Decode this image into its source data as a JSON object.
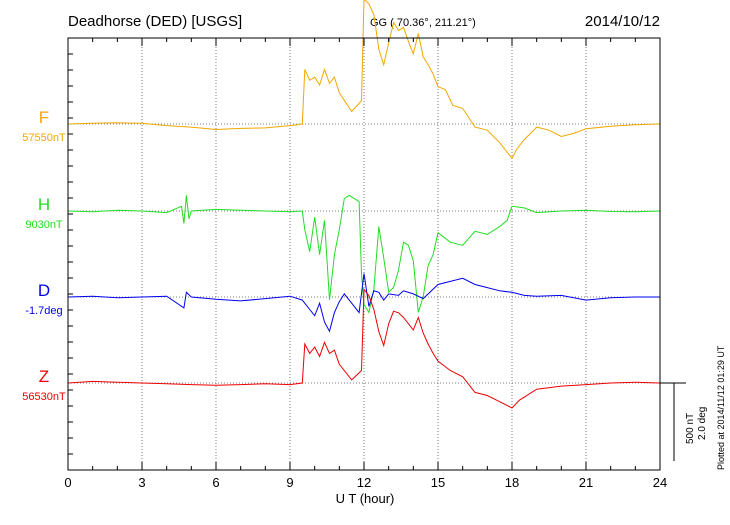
{
  "header": {
    "station": "Deadhorse (DED)  [USGS]",
    "coords": "GG ( 70.36°, 211.21°)",
    "date": "2014/10/12"
  },
  "plotted_note": "Plotted at 2014/11/12 01:29 UT",
  "scale_bar": {
    "line1": "500 nT",
    "line2": "2.0 deg"
  },
  "chart_data": {
    "type": "line",
    "title": "",
    "xlabel": "U T (hour)",
    "xlim": [
      0,
      24
    ],
    "xticks": [
      {
        "value": 0,
        "label": "0"
      },
      {
        "value": 3,
        "label": "3"
      },
      {
        "value": 6,
        "label": "6"
      },
      {
        "value": 9,
        "label": "9"
      },
      {
        "value": 12,
        "label": "12"
      },
      {
        "value": 15,
        "label": "15"
      },
      {
        "value": 18,
        "label": "18"
      },
      {
        "value": 21,
        "label": "21"
      },
      {
        "value": 24,
        "label": "24"
      }
    ],
    "grid": true,
    "scale_note": "scale bar = 500 nT (F,H,Z) / 2.0 deg (D); series values are deviations from baseline in nT (D in deg)",
    "series": [
      {
        "name": "F",
        "baseline_label": "57550nT",
        "color": "#f0a800",
        "points": [
          [
            0,
            0
          ],
          [
            1,
            5
          ],
          [
            2,
            8
          ],
          [
            3,
            5
          ],
          [
            4,
            -10
          ],
          [
            5,
            -20
          ],
          [
            6,
            -35
          ],
          [
            7,
            -28
          ],
          [
            8,
            -25
          ],
          [
            9,
            -10
          ],
          [
            9.5,
            0
          ],
          [
            9.6,
            350
          ],
          [
            9.8,
            280
          ],
          [
            10,
            300
          ],
          [
            10.2,
            250
          ],
          [
            10.4,
            350
          ],
          [
            10.6,
            260
          ],
          [
            10.8,
            300
          ],
          [
            11,
            200
          ],
          [
            11.5,
            80
          ],
          [
            11.9,
            150
          ],
          [
            12,
            800
          ],
          [
            12.2,
            770
          ],
          [
            12.4,
            700
          ],
          [
            12.6,
            480
          ],
          [
            12.8,
            380
          ],
          [
            13,
            520
          ],
          [
            13.2,
            650
          ],
          [
            13.4,
            600
          ],
          [
            13.6,
            620
          ],
          [
            13.8,
            530
          ],
          [
            14,
            450
          ],
          [
            14.2,
            580
          ],
          [
            14.4,
            430
          ],
          [
            14.6,
            380
          ],
          [
            14.8,
            320
          ],
          [
            15,
            240
          ],
          [
            15.3,
            220
          ],
          [
            15.6,
            120
          ],
          [
            16,
            100
          ],
          [
            16.5,
            -20
          ],
          [
            17,
            -40
          ],
          [
            17.5,
            -120
          ],
          [
            18,
            -220
          ],
          [
            18.2,
            -160
          ],
          [
            18.5,
            -100
          ],
          [
            19,
            -20
          ],
          [
            19.5,
            -40
          ],
          [
            20,
            -80
          ],
          [
            20.5,
            -60
          ],
          [
            21,
            -30
          ],
          [
            22,
            -15
          ],
          [
            23,
            -5
          ],
          [
            24,
            0
          ]
        ]
      },
      {
        "name": "H",
        "baseline_label": "9030nT",
        "color": "#22dd22",
        "points": [
          [
            0,
            0
          ],
          [
            1,
            -5
          ],
          [
            2,
            5
          ],
          [
            3,
            0
          ],
          [
            4,
            -10
          ],
          [
            4.6,
            30
          ],
          [
            4.7,
            -80
          ],
          [
            4.8,
            100
          ],
          [
            4.9,
            -50
          ],
          [
            5,
            0
          ],
          [
            6,
            10
          ],
          [
            7,
            5
          ],
          [
            8,
            0
          ],
          [
            9,
            -5
          ],
          [
            9.5,
            0
          ],
          [
            9.6,
            -120
          ],
          [
            9.8,
            -260
          ],
          [
            10,
            -40
          ],
          [
            10.2,
            -280
          ],
          [
            10.4,
            -60
          ],
          [
            10.6,
            -570
          ],
          [
            10.8,
            -280
          ],
          [
            11,
            -120
          ],
          [
            11.2,
            80
          ],
          [
            11.4,
            100
          ],
          [
            11.8,
            60
          ],
          [
            11.9,
            -400
          ],
          [
            12,
            -600
          ],
          [
            12.2,
            -650
          ],
          [
            12.4,
            -500
          ],
          [
            12.6,
            -100
          ],
          [
            12.8,
            -300
          ],
          [
            13,
            -520
          ],
          [
            13.2,
            -490
          ],
          [
            13.4,
            -380
          ],
          [
            13.6,
            -200
          ],
          [
            13.8,
            -220
          ],
          [
            14,
            -320
          ],
          [
            14.2,
            -650
          ],
          [
            14.4,
            -550
          ],
          [
            14.6,
            -350
          ],
          [
            14.8,
            -280
          ],
          [
            15,
            -140
          ],
          [
            15.5,
            -200
          ],
          [
            16,
            -220
          ],
          [
            16.5,
            -130
          ],
          [
            17,
            -150
          ],
          [
            17.5,
            -100
          ],
          [
            17.8,
            -60
          ],
          [
            18,
            30
          ],
          [
            18.5,
            20
          ],
          [
            19,
            -10
          ],
          [
            20,
            0
          ],
          [
            21,
            5
          ],
          [
            22,
            -3
          ],
          [
            23,
            -5
          ],
          [
            24,
            0
          ]
        ]
      },
      {
        "name": "D",
        "baseline_label": "-1.7deg",
        "color": "#0000ee",
        "points": [
          [
            0,
            0
          ],
          [
            1,
            5
          ],
          [
            2,
            -5
          ],
          [
            3,
            0
          ],
          [
            4,
            5
          ],
          [
            4.7,
            -70
          ],
          [
            4.8,
            30
          ],
          [
            5,
            0
          ],
          [
            6,
            -15
          ],
          [
            7,
            -25
          ],
          [
            8,
            -10
          ],
          [
            9,
            5
          ],
          [
            9.5,
            -20
          ],
          [
            9.8,
            -80
          ],
          [
            10,
            -120
          ],
          [
            10.2,
            -40
          ],
          [
            10.4,
            -160
          ],
          [
            10.6,
            -220
          ],
          [
            10.8,
            -100
          ],
          [
            11,
            -30
          ],
          [
            11.2,
            20
          ],
          [
            11.5,
            -40
          ],
          [
            11.8,
            -100
          ],
          [
            12,
            150
          ],
          [
            12.2,
            -60
          ],
          [
            12.4,
            40
          ],
          [
            12.6,
            30
          ],
          [
            12.8,
            -20
          ],
          [
            13,
            20
          ],
          [
            13.4,
            10
          ],
          [
            13.6,
            40
          ],
          [
            14,
            20
          ],
          [
            14.4,
            -10
          ],
          [
            15,
            80
          ],
          [
            15.5,
            100
          ],
          [
            16,
            120
          ],
          [
            16.5,
            80
          ],
          [
            17,
            60
          ],
          [
            17.5,
            40
          ],
          [
            18,
            30
          ],
          [
            18.5,
            10
          ],
          [
            19,
            5
          ],
          [
            20,
            10
          ],
          [
            21,
            -20
          ],
          [
            22,
            -5
          ],
          [
            23,
            0
          ],
          [
            24,
            0
          ]
        ]
      },
      {
        "name": "Z",
        "baseline_label": "56530nT",
        "color": "#ee0000",
        "points": [
          [
            0,
            0
          ],
          [
            1,
            10
          ],
          [
            2,
            5
          ],
          [
            3,
            0
          ],
          [
            4,
            -5
          ],
          [
            5,
            -10
          ],
          [
            6,
            -15
          ],
          [
            7,
            -10
          ],
          [
            8,
            -5
          ],
          [
            9,
            -10
          ],
          [
            9.5,
            0
          ],
          [
            9.6,
            250
          ],
          [
            9.8,
            190
          ],
          [
            10,
            230
          ],
          [
            10.2,
            170
          ],
          [
            10.4,
            260
          ],
          [
            10.6,
            190
          ],
          [
            10.8,
            210
          ],
          [
            11,
            120
          ],
          [
            11.5,
            20
          ],
          [
            11.9,
            80
          ],
          [
            12,
            600
          ],
          [
            12.2,
            560
          ],
          [
            12.4,
            470
          ],
          [
            12.6,
            330
          ],
          [
            12.8,
            240
          ],
          [
            13,
            380
          ],
          [
            13.2,
            460
          ],
          [
            13.4,
            450
          ],
          [
            13.6,
            420
          ],
          [
            13.8,
            380
          ],
          [
            14,
            340
          ],
          [
            14.2,
            420
          ],
          [
            14.4,
            320
          ],
          [
            14.6,
            250
          ],
          [
            14.8,
            190
          ],
          [
            15,
            140
          ],
          [
            15.5,
            80
          ],
          [
            16,
            40
          ],
          [
            16.5,
            -60
          ],
          [
            17,
            -80
          ],
          [
            17.5,
            -120
          ],
          [
            18,
            -160
          ],
          [
            18.3,
            -110
          ],
          [
            19,
            -40
          ],
          [
            20,
            -20
          ],
          [
            21,
            -10
          ],
          [
            22,
            0
          ],
          [
            23,
            5
          ],
          [
            24,
            0
          ]
        ]
      }
    ]
  }
}
